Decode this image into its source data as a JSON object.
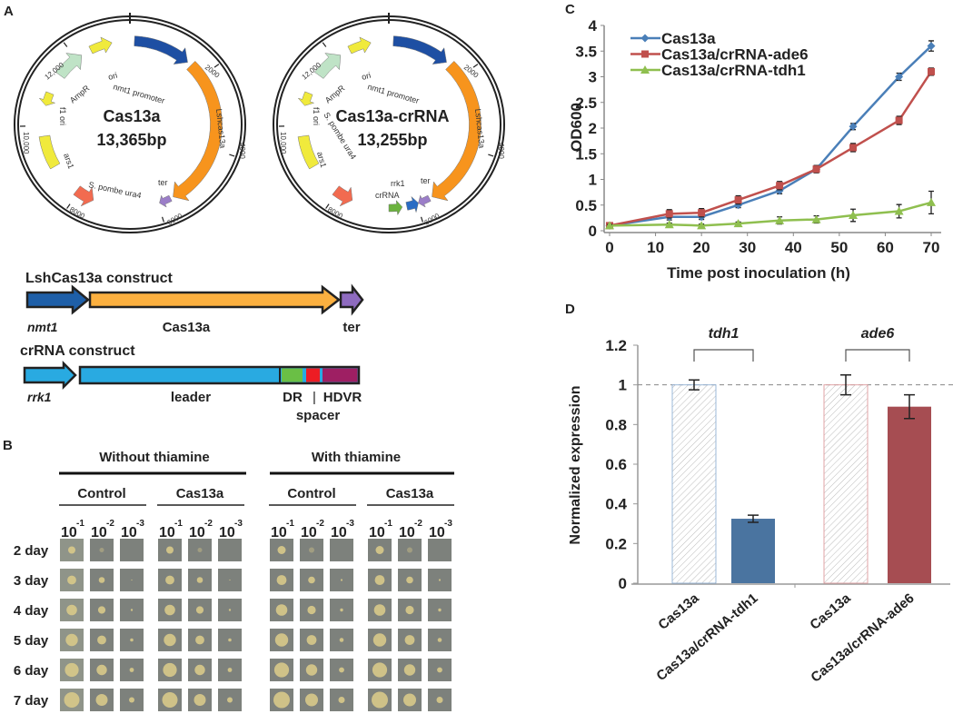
{
  "panels": {
    "a": "A",
    "b": "B",
    "c": "C",
    "d": "D"
  },
  "plasmids": [
    {
      "name": "Cas13a",
      "size": "13,365bp",
      "labels": {
        "ori": "ori",
        "nmt1": "nmt1 promoter",
        "ampr": "AmpR",
        "f1": "f1 ori",
        "ars1": "ars1",
        "ura4": "S. pombe ura4",
        "ter": "ter",
        "cas": "Lshcas13a"
      }
    },
    {
      "name": "Cas13a-crRNA",
      "size": "13,255bp",
      "labels": {
        "ori": "ori",
        "nmt1": "nmt1 promoter",
        "ampr": "AmpR",
        "f1": "f1 ori",
        "ars1": "ars1",
        "ura4": "S. pombe ura4",
        "ter": "ter",
        "cas": "Lshcas13a",
        "rrk1": "rrk1",
        "crrna": "crRNA"
      }
    }
  ],
  "plasmid_ticks": [
    "2000",
    "4000",
    "6000",
    "8000",
    "10,000",
    "12,000"
  ],
  "constructs": {
    "lsh": {
      "title": "LshCas13a  construct",
      "promoter": "nmt1",
      "gene": "Cas13a",
      "ter": "ter"
    },
    "crrna": {
      "title": "crRNA  construct",
      "promoter": "rrk1",
      "leader": "leader",
      "dr": "DR",
      "sep": "|",
      "hdvr": "HDVR",
      "spacer": "spacer"
    }
  },
  "panel_b": {
    "conditions": [
      "Without thiamine",
      "With thiamine"
    ],
    "strains": [
      "Control",
      "Cas13a",
      "Control",
      "Cas13a"
    ],
    "dilutions": [
      {
        "base": "10",
        "exp": "-1"
      },
      {
        "base": "10",
        "exp": "-2"
      },
      {
        "base": "10",
        "exp": "-3"
      }
    ],
    "days": [
      "2 day",
      "3 day",
      "4 day",
      "5 day",
      "6 day",
      "7 day"
    ]
  },
  "colors": {
    "cas13a": "#4a7fb8",
    "ade6": "#c0504d",
    "tdh1": "#8fbf4f",
    "bar_tdh1": "#4a74a0",
    "bar_ade6": "#a64d52",
    "nmt1": "#1e4fa3",
    "lshcas13a": "#f7941d",
    "ter": "#9b7ec8",
    "ura4": "#f26b50",
    "yellow": "#f0ea3c",
    "ampr": "#bfe3c6",
    "crrna_green": "#6cb33f",
    "rrk1": "#2a6cc4",
    "leader": "#29aae1",
    "dr": "#6abf45",
    "spacer": "#ed1c24",
    "hdvr": "#9e1f63"
  },
  "chart_data": [
    {
      "type": "line",
      "xlabel": "Time post inoculation (h)",
      "ylabel": "OD600",
      "xlim": [
        0,
        70
      ],
      "ylim": [
        0,
        4
      ],
      "xticks": [
        "0",
        "10",
        "20",
        "30",
        "40",
        "50",
        "60",
        "70"
      ],
      "yticks": [
        "0",
        "0.5",
        "1",
        "1.5",
        "2",
        "2.5",
        "3",
        "3.5",
        "4"
      ],
      "legend": "top-left",
      "x": [
        0,
        13,
        20,
        28,
        37,
        45,
        53,
        63,
        70
      ],
      "series": [
        {
          "name": "Cas13a",
          "marker": "diamond",
          "values": [
            0.1,
            0.27,
            0.27,
            0.5,
            0.78,
            1.2,
            2.03,
            3.0,
            3.6
          ],
          "errors": [
            0.03,
            0.06,
            0.05,
            0.05,
            0.06,
            0.07,
            0.06,
            0.07,
            0.1
          ]
        },
        {
          "name": "Cas13a/crRNA-ade6",
          "marker": "square",
          "values": [
            0.1,
            0.33,
            0.35,
            0.6,
            0.88,
            1.2,
            1.62,
            2.15,
            3.1
          ],
          "errors": [
            0.03,
            0.08,
            0.08,
            0.08,
            0.08,
            0.07,
            0.08,
            0.08,
            0.07
          ]
        },
        {
          "name": "Cas13a/crRNA-tdh1",
          "marker": "triangle",
          "values": [
            0.1,
            0.12,
            0.1,
            0.14,
            0.2,
            0.22,
            0.3,
            0.38,
            0.55
          ],
          "errors": [
            0.02,
            0.03,
            0.03,
            0.03,
            0.07,
            0.07,
            0.12,
            0.13,
            0.22
          ]
        }
      ]
    },
    {
      "type": "bar",
      "ylabel": "Normalized expression",
      "ylim": [
        0,
        1.2
      ],
      "yticks": [
        "0",
        "0.2",
        "0.4",
        "0.6",
        "0.8",
        "1",
        "1.2"
      ],
      "reference_line": 1,
      "groups": [
        {
          "label": "tdh1",
          "categories": [
            "Cas13a",
            "Cas13a/crRNA-tdh1"
          ],
          "values": [
            1.0,
            0.325
          ],
          "errors": [
            0.025,
            0.018
          ],
          "styles": [
            "hatched",
            "solid"
          ]
        },
        {
          "label": "ade6",
          "categories": [
            "Cas13a",
            "Cas13a/crRNA-ade6"
          ],
          "values": [
            1.0,
            0.89
          ],
          "errors": [
            0.05,
            0.06
          ],
          "styles": [
            "hatched",
            "solid"
          ]
        }
      ]
    }
  ]
}
